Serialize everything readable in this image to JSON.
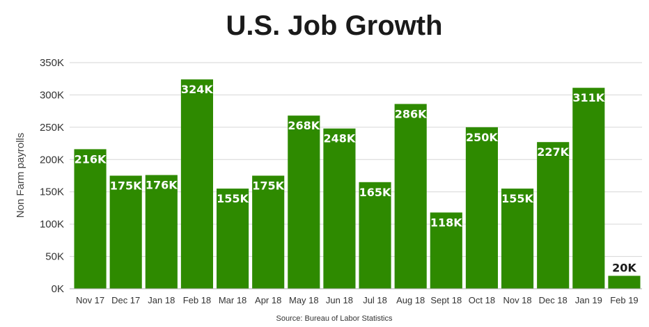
{
  "chart_data": {
    "type": "bar",
    "title": "U.S. Job Growth",
    "ylabel": "Non Farm payrolls",
    "xlabel": "",
    "source": "Source: Bureau of Labor Statistics",
    "ylim": [
      0,
      350
    ],
    "yticks": [
      0,
      50,
      100,
      150,
      200,
      250,
      300,
      350
    ],
    "ytick_labels": [
      "0K",
      "50K",
      "100K",
      "150K",
      "200K",
      "250K",
      "300K",
      "350K"
    ],
    "grid": true,
    "categories": [
      "Nov 17",
      "Dec 17",
      "Jan 18",
      "Feb 18",
      "Mar 18",
      "Apr 18",
      "May 18",
      "Jun 18",
      "Jul 18",
      "Aug 18",
      "Sept 18",
      "Oct 18",
      "Nov 18",
      "Dec 18",
      "Jan 19",
      "Feb 19"
    ],
    "values": [
      216,
      175,
      176,
      324,
      155,
      175,
      268,
      248,
      165,
      286,
      118,
      250,
      155,
      227,
      311,
      20
    ],
    "data_labels": [
      "216K",
      "175K",
      "176K",
      "324K",
      "155K",
      "175K",
      "268K",
      "248K",
      "165K",
      "286K",
      "118K",
      "250K",
      "155K",
      "227K",
      "311K",
      "20K"
    ],
    "colors": {
      "bar": "#2e8a00",
      "label_inside": "#ffffff",
      "label_outside": "#1a1a1a"
    }
  }
}
